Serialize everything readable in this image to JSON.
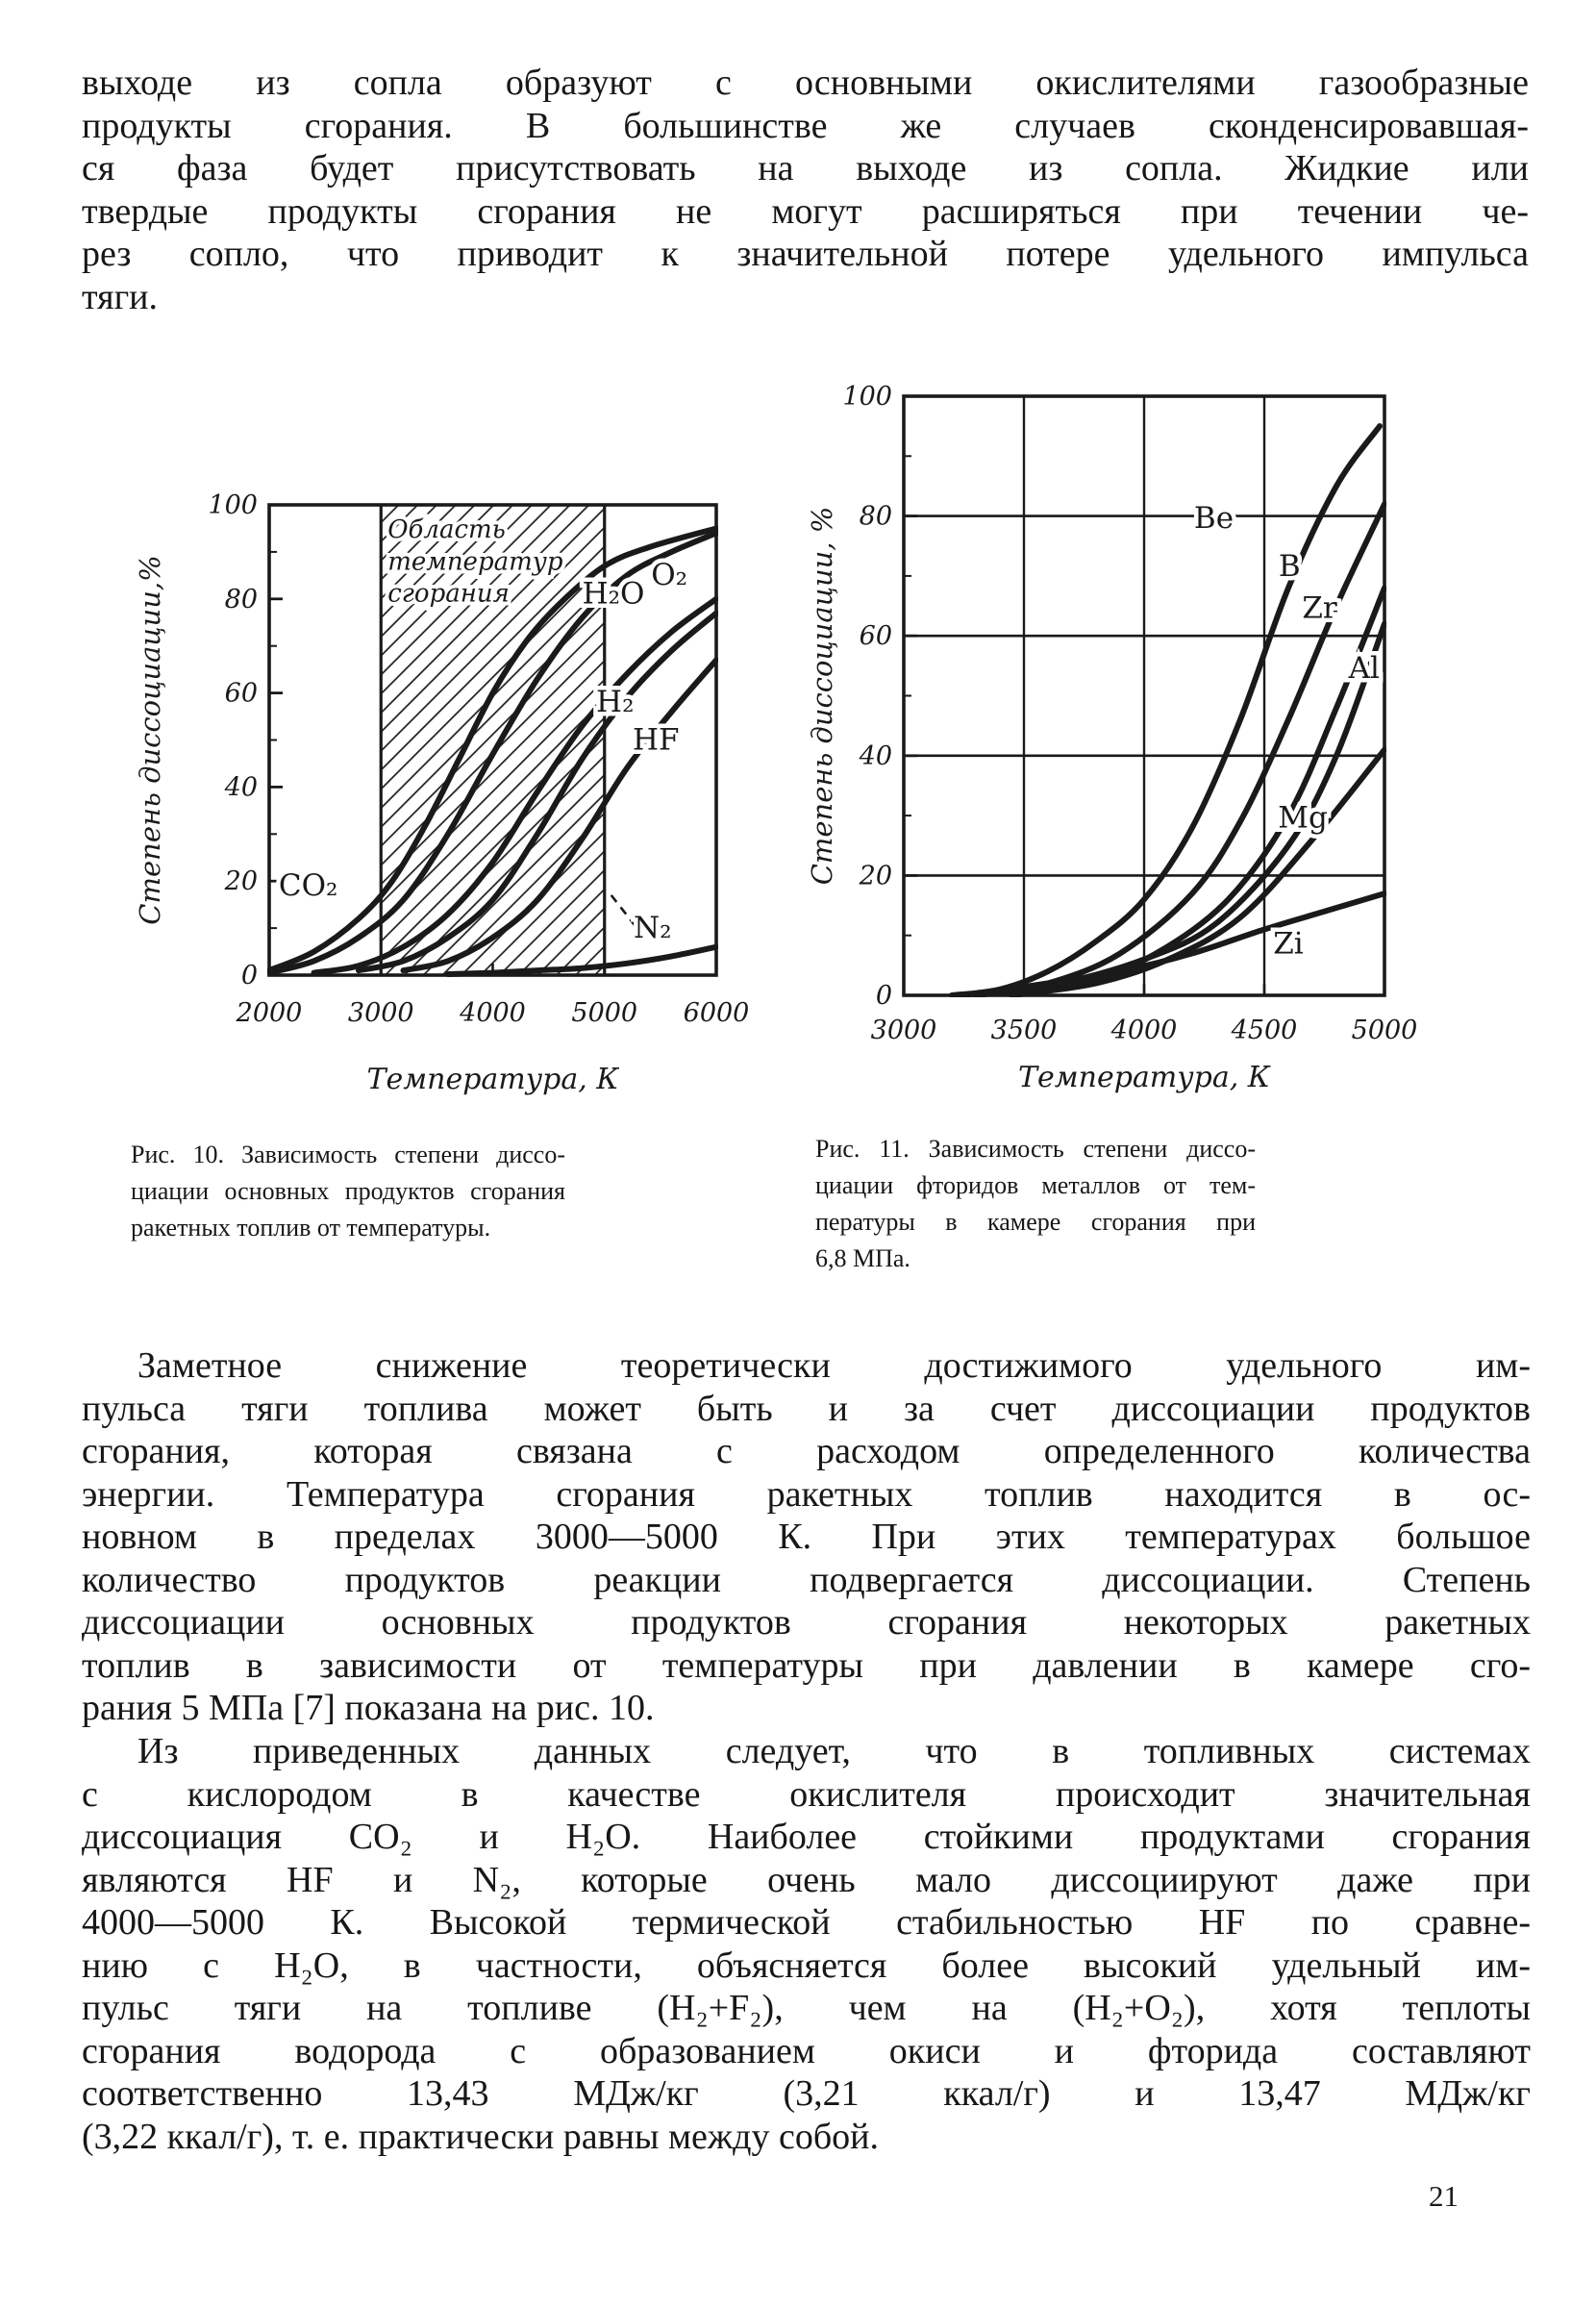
{
  "page": {
    "number": "21"
  },
  "top_paragraph": {
    "lines": [
      "выходе из сопла образуют с основными окислителями газообразные",
      "продукты сгорания. В большинстве же случаев сконденсировавшая-",
      "ся фаза будет присутствовать на выходе из сопла. Жидкие или",
      "твердые продукты сгорания не могут расширяться при течении че-",
      "рез сопло, что приводит к значительной потере удельного импульса",
      "тяги."
    ]
  },
  "figures": {
    "fig10": {
      "caption_lines": [
        "Рис. 10. Зависимость степени диссо-",
        "циации основных продуктов сгорания",
        "ракетных топлив от температуры."
      ]
    },
    "fig11": {
      "caption_lines": [
        "Рис. 11. Зависимость степени диссо-",
        "циации фторидов металлов от тем-",
        "пературы в камере сгорания при",
        "6,8 МПа."
      ]
    }
  },
  "body_paragraph_1": {
    "lines": [
      "Заметное снижение теоретически достижимого удельного им-",
      "пульса тяги топлива может быть и за счет диссоциации продуктов",
      "сгорания, которая связана с расходом определенного количества",
      "энергии. Температура сгорания ракетных топлив находится в ос-",
      "новном в пределах 3000—5000 К. При этих температурах большое",
      "количество продуктов реакции подвергается диссоциации. Степень",
      "диссоциации основных продуктов сгорания некоторых ракетных",
      "топлив в зависимости от температуры при давлении в камере сго-",
      "рания 5 МПа [7] показана на рис. 10."
    ]
  },
  "body_paragraph_2": {
    "lines": [
      "Из приведенных данных следует, что в топливных системах",
      "с кислородом в качестве окислителя происходит значительная",
      "диссоциация CO₂ и H₂O. Наиболее стойкими продуктами сгорания",
      "являются HF и N₂, которые очень мало диссоциируют даже при",
      "4000—5000 К. Высокой термической стабильностью HF по сравне-",
      "нию с H₂O, в частности, объясняется более высокий удельный им-",
      "пульс тяги на топливе (H₂+F₂), чем на (H₂+O₂), хотя теплоты",
      "сгорания водорода с образованием окиси и фторида составляют",
      "соответственно 13,43 МДж/кг (3,21 ккал/г) и 13,47 МДж/кг",
      "(3,22 ккал/г), т. е. практически равны между собой."
    ]
  },
  "chart_data": [
    {
      "id": "ris-10",
      "type": "line",
      "title": "Рис. 10",
      "xlabel": "Температура, К",
      "ylabel": "Степень диссоциации,%",
      "xlim": [
        2000,
        6000
      ],
      "ylim": [
        0,
        100
      ],
      "xticks": [
        2000,
        3000,
        4000,
        5000,
        6000
      ],
      "yticks": [
        0,
        20,
        40,
        60,
        80,
        100
      ],
      "grid": false,
      "line_color": "#1a1a1a",
      "shaded_band": {
        "x0": 3000,
        "x1": 5000,
        "style": "diagonal-hatch",
        "label_lines": [
          "Область",
          "температур",
          "сгорания"
        ],
        "label_x": 3060,
        "label_y": 93
      },
      "series": [
        {
          "name": "CO₂",
          "label": {
            "x": 2350,
            "y": 17
          },
          "points": [
            [
              2000,
              1
            ],
            [
              2400,
              5
            ],
            [
              2800,
              12
            ],
            [
              3100,
              20
            ],
            [
              3400,
              32
            ],
            [
              3700,
              46
            ],
            [
              4000,
              60
            ],
            [
              4300,
              71
            ],
            [
              4600,
              79
            ],
            [
              5000,
              87
            ],
            [
              5400,
              91
            ],
            [
              6000,
              95
            ]
          ]
        },
        {
          "name": "H₂O",
          "label": {
            "x": 5080,
            "y": 79
          },
          "points": [
            [
              2000,
              0.5
            ],
            [
              2400,
              3
            ],
            [
              2800,
              8
            ],
            [
              3200,
              16
            ],
            [
              3600,
              30
            ],
            [
              4000,
              47
            ],
            [
              4400,
              63
            ],
            [
              4800,
              76
            ],
            [
              5200,
              85
            ],
            [
              5600,
              90
            ],
            [
              6000,
              94
            ]
          ]
        },
        {
          "name": "O₂",
          "label": {
            "x": 5580,
            "y": 83
          },
          "points": [
            [
              2400,
              0.5
            ],
            [
              2800,
              2
            ],
            [
              3200,
              6
            ],
            [
              3600,
              13
            ],
            [
              4000,
              24
            ],
            [
              4400,
              39
            ],
            [
              4800,
              53
            ],
            [
              5200,
              64
            ],
            [
              5600,
              73
            ],
            [
              6000,
              80
            ]
          ]
        },
        {
          "name": "H₂",
          "label": {
            "x": 5095,
            "y": 56
          },
          "points": [
            [
              2800,
              1
            ],
            [
              3200,
              3
            ],
            [
              3600,
              8
            ],
            [
              4000,
              16
            ],
            [
              4400,
              30
            ],
            [
              4800,
              46
            ],
            [
              5200,
              59
            ],
            [
              5600,
              69
            ],
            [
              6000,
              77
            ]
          ]
        },
        {
          "name": "HF",
          "label": {
            "x": 5460,
            "y": 48
          },
          "points": [
            [
              3200,
              1
            ],
            [
              3600,
              3
            ],
            [
              4000,
              8
            ],
            [
              4400,
              16
            ],
            [
              4800,
              29
            ],
            [
              5200,
              44
            ],
            [
              5600,
              56
            ],
            [
              6000,
              67
            ]
          ]
        },
        {
          "name": "N₂",
          "label": {
            "x": 5430,
            "y": 8
          },
          "leader": [
            [
              5060,
              17
            ],
            [
              5290,
              10
            ]
          ],
          "points": [
            [
              3600,
              0.2
            ],
            [
              4000,
              0.5
            ],
            [
              4400,
              1
            ],
            [
              4800,
              1.5
            ],
            [
              5200,
              2.5
            ],
            [
              5600,
              4
            ],
            [
              6000,
              6
            ]
          ]
        }
      ]
    },
    {
      "id": "ris-11",
      "type": "line",
      "title": "Рис. 11",
      "xlabel": "Температура, К",
      "ylabel": "Степень диссоциации, %",
      "xlim": [
        3000,
        5000
      ],
      "ylim": [
        0,
        100
      ],
      "xticks": [
        3000,
        3500,
        4000,
        4500,
        5000
      ],
      "yticks": [
        0,
        20,
        40,
        60,
        80,
        100
      ],
      "grid": true,
      "line_color": "#1a1a1a",
      "series": [
        {
          "name": "Be",
          "label": {
            "x": 4290,
            "y": 78
          },
          "points": [
            [
              3200,
              0
            ],
            [
              3400,
              1
            ],
            [
              3600,
              4
            ],
            [
              3800,
              9
            ],
            [
              4000,
              16
            ],
            [
              4200,
              28
            ],
            [
              4400,
              46
            ],
            [
              4600,
              68
            ],
            [
              4800,
              85
            ],
            [
              4980,
              95
            ]
          ]
        },
        {
          "name": "B",
          "label": {
            "x": 4605,
            "y": 70
          },
          "points": [
            [
              3300,
              0
            ],
            [
              3600,
              2
            ],
            [
              3900,
              7
            ],
            [
              4200,
              17
            ],
            [
              4400,
              29
            ],
            [
              4600,
              46
            ],
            [
              4800,
              65
            ],
            [
              5000,
              82
            ]
          ]
        },
        {
          "name": "Zr",
          "label": {
            "x": 4730,
            "y": 63
          },
          "points": [
            [
              3450,
              0
            ],
            [
              3750,
              2
            ],
            [
              4050,
              7
            ],
            [
              4350,
              16
            ],
            [
              4600,
              30
            ],
            [
              4800,
              48
            ],
            [
              5000,
              68
            ]
          ]
        },
        {
          "name": "Al",
          "label": {
            "x": 4915,
            "y": 53
          },
          "points": [
            [
              3300,
              0
            ],
            [
              3650,
              2
            ],
            [
              4000,
              6
            ],
            [
              4300,
              12
            ],
            [
              4600,
              25
            ],
            [
              4800,
              40
            ],
            [
              5000,
              62
            ]
          ]
        },
        {
          "name": "Mg",
          "label": {
            "x": 4660,
            "y": 28
          },
          "points": [
            [
              3450,
              0
            ],
            [
              3800,
              2
            ],
            [
              4100,
              6
            ],
            [
              4400,
              13
            ],
            [
              4700,
              26
            ],
            [
              5000,
              41
            ]
          ]
        },
        {
          "name": "Zi",
          "label": {
            "x": 4600,
            "y": 7
          },
          "points": [
            [
              3250,
              0
            ],
            [
              3600,
              2
            ],
            [
              3900,
              4
            ],
            [
              4200,
              7
            ],
            [
              4500,
              11
            ],
            [
              4750,
              14
            ],
            [
              5000,
              17
            ]
          ]
        }
      ]
    }
  ]
}
